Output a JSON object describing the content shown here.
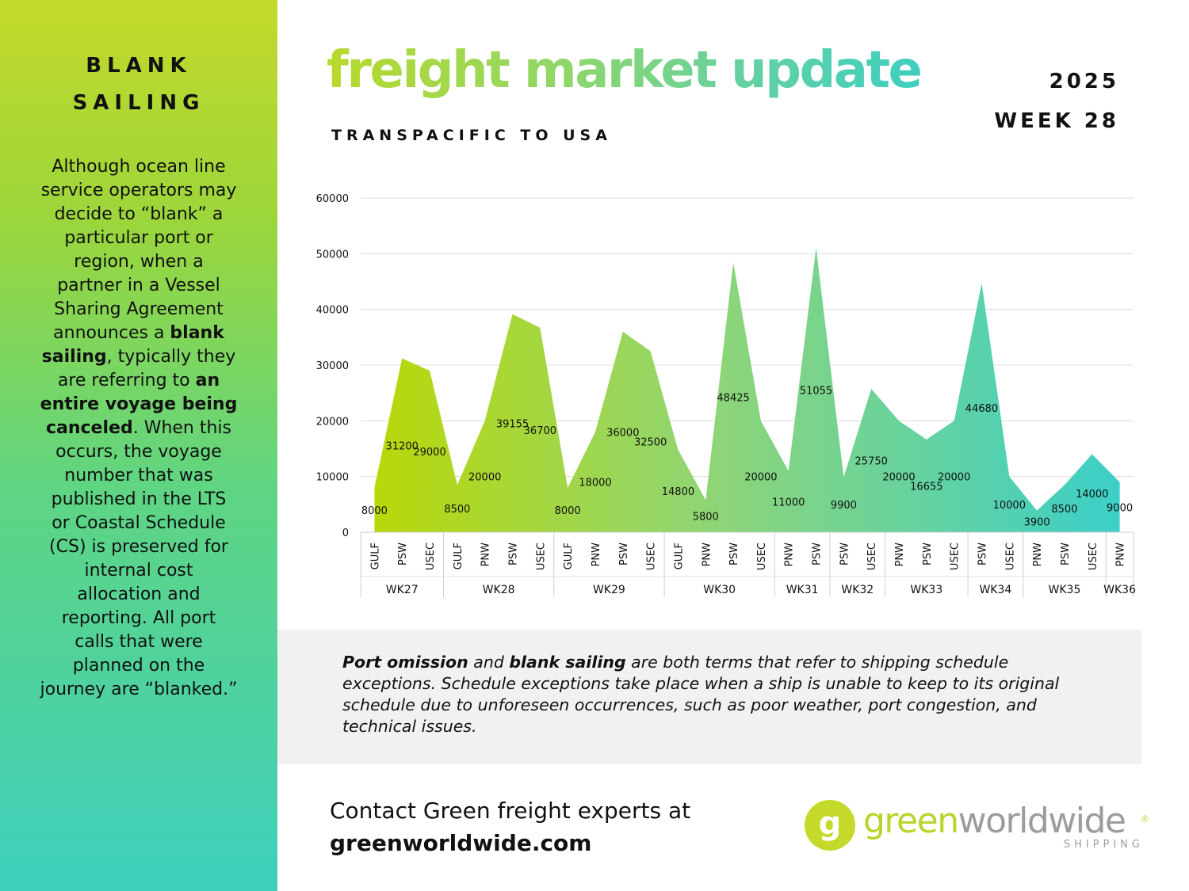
{
  "sidebar": {
    "title_line1": "BLANK",
    "title_line2": "SAILING",
    "p1": "Although ocean line service operators may decide to “blank” a particular port or region, when a partner in a Vessel Sharing Agreement announces a ",
    "b1": "blank sailing",
    "p2": ", typically they are referring to ",
    "b2": "an entire voyage being canceled",
    "p3": ". When this occurs, the voyage number that was published in the LTS or Coastal Schedule (CS) is preserved for internal cost allocation and reporting. All port calls that were planned on the journey are “blanked.”",
    "bg_top": "#c4d92a",
    "bg_bottom": "#3ecfbd"
  },
  "header": {
    "title": "freight market update",
    "subtitle": "TRANSPACIFIC TO USA",
    "year": "2025",
    "week": "WEEK 28"
  },
  "chart_data": {
    "type": "area",
    "title": "",
    "xlabel": "",
    "ylabel": "",
    "ylim": [
      0,
      60000
    ],
    "yticks": [
      0,
      10000,
      20000,
      30000,
      40000,
      50000,
      60000
    ],
    "grid": true,
    "legend": "none",
    "categories": [
      {
        "week": "WK27",
        "port": "GULF",
        "value": 8000
      },
      {
        "week": "WK27",
        "port": "PSW",
        "value": 31200
      },
      {
        "week": "WK27",
        "port": "USEC",
        "value": 29000
      },
      {
        "week": "WK28",
        "port": "GULF",
        "value": 8500
      },
      {
        "week": "WK28",
        "port": "PNW",
        "value": 20000
      },
      {
        "week": "WK28",
        "port": "PSW",
        "value": 39155
      },
      {
        "week": "WK28",
        "port": "USEC",
        "value": 36700
      },
      {
        "week": "WK29",
        "port": "GULF",
        "value": 8000
      },
      {
        "week": "WK29",
        "port": "PNW",
        "value": 18000
      },
      {
        "week": "WK29",
        "port": "PSW",
        "value": 36000
      },
      {
        "week": "WK29",
        "port": "USEC",
        "value": 32500
      },
      {
        "week": "WK30",
        "port": "GULF",
        "value": 14800
      },
      {
        "week": "WK30",
        "port": "PNW",
        "value": 5800
      },
      {
        "week": "WK30",
        "port": "PSW",
        "value": 48425
      },
      {
        "week": "WK30",
        "port": "USEC",
        "value": 20000
      },
      {
        "week": "WK31",
        "port": "PNW",
        "value": 11000
      },
      {
        "week": "WK31",
        "port": "PSW",
        "value": 51055
      },
      {
        "week": "WK32",
        "port": "PSW",
        "value": 9900
      },
      {
        "week": "WK32",
        "port": "USEC",
        "value": 25750
      },
      {
        "week": "WK33",
        "port": "PNW",
        "value": 20000
      },
      {
        "week": "WK33",
        "port": "PSW",
        "value": 16655
      },
      {
        "week": "WK33",
        "port": "USEC",
        "value": 20000
      },
      {
        "week": "WK34",
        "port": "PSW",
        "value": 44680
      },
      {
        "week": "WK34",
        "port": "USEC",
        "value": 10000
      },
      {
        "week": "WK35",
        "port": "PNW",
        "value": 3900
      },
      {
        "week": "WK35",
        "port": "PSW",
        "value": 8500
      },
      {
        "week": "WK35",
        "port": "USEC",
        "value": 14000
      },
      {
        "week": "WK36",
        "port": "PNW",
        "value": 9000
      }
    ],
    "color_start": "#b9d80a",
    "color_end": "#3ccfc8"
  },
  "note": {
    "b1": "Port omission",
    "t1": " and ",
    "b2": "blank sailing",
    "t2": " are both terms that refer to shipping schedule exceptions. Schedule exceptions take place when a ship is unable to keep to its original schedule due to unforeseen occurrences, such as poor weather, port congestion, and technical issues."
  },
  "footer": {
    "contact_line": "Contact Green freight experts at",
    "contact_url": "greenworldwide.com",
    "logo_word1": "green",
    "logo_word2": "worldwide",
    "logo_reg": "®",
    "logo_sub": "SHIPPING",
    "logo_glyph": "g"
  }
}
